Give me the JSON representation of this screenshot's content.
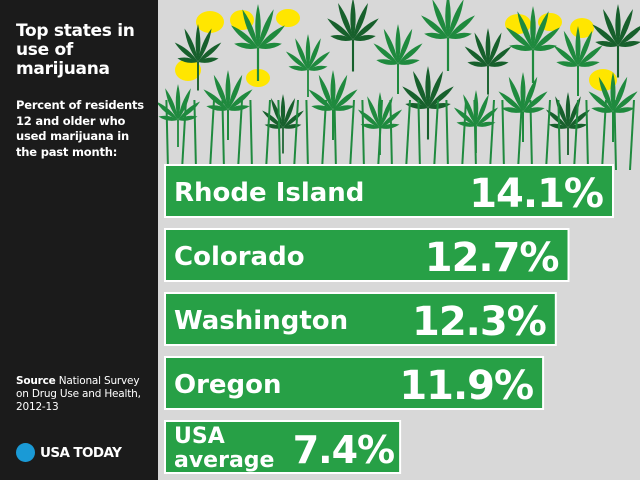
{
  "sidebar": {
    "title": "Top states in use of marijuana",
    "subtitle": "Percent of residents 12 and older who used marijuana in the past month:",
    "source_label": "Source",
    "source_text": "National Survey on Drug Use and Health, 2012-13",
    "brand": "USA TODAY"
  },
  "colors": {
    "bar": "#27a046",
    "bar_dark": "#1e7f37",
    "bar_outline": "#ffffff",
    "leaf": "#1f8a3e",
    "leaf_dark": "#17602c",
    "flower": "#ffe600",
    "background": "#d8d8d8",
    "sidebar": "#1b1b1b",
    "brand_dot": "#1a9ad6"
  },
  "chart_data": {
    "type": "bar",
    "orientation": "horizontal",
    "title": "Top states in use of marijuana",
    "subtitle": "Percent of residents 12 and older who used marijuana in the past month:",
    "categories": [
      "Rhode Island",
      "Colorado",
      "Washington",
      "Oregon",
      "USA average"
    ],
    "values": [
      14.1,
      12.7,
      12.3,
      11.9,
      7.4
    ],
    "value_labels": [
      "14.1%",
      "12.7%",
      "12.3%",
      "11.9%",
      "7.4%"
    ],
    "unit": "%",
    "grid": false,
    "legend": "none"
  }
}
